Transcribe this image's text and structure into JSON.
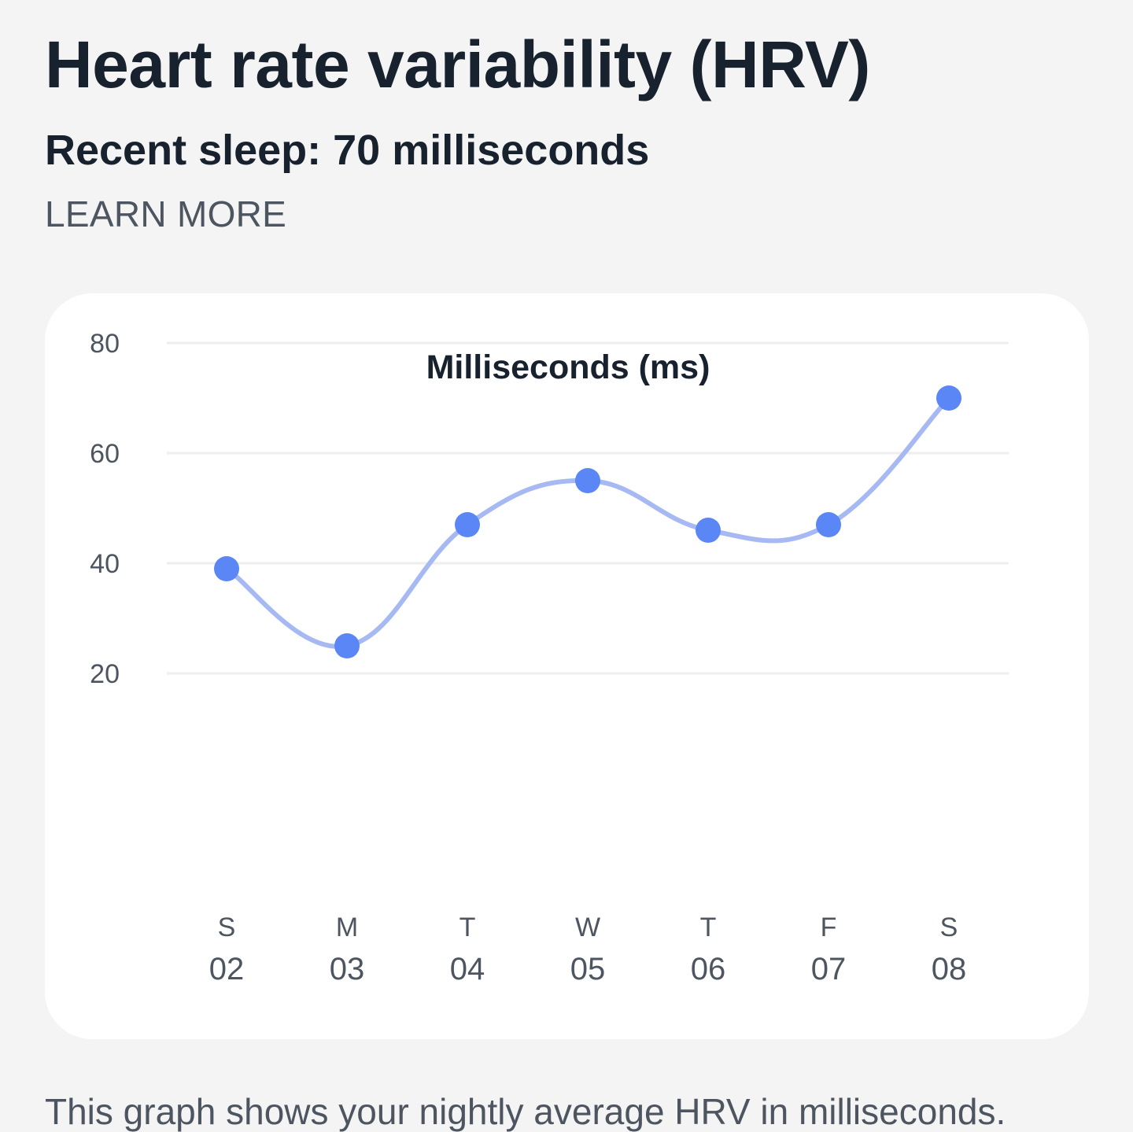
{
  "header": {
    "title": "Heart rate variability (HRV)",
    "recent_sleep": "Recent sleep: 70 milliseconds",
    "learn_more": "LEARN MORE"
  },
  "description": "This graph shows your nightly average HRV in milliseconds.",
  "colors": {
    "line": "#a6b9f3",
    "point": "#5b86f5",
    "grid": "#eeeeee",
    "text_dark": "#17222e",
    "text_muted": "#4d5560"
  },
  "chart_data": {
    "type": "line",
    "title": "Milliseconds (ms)",
    "xlabel": "",
    "ylabel": "",
    "ylim": [
      0,
      80
    ],
    "y_ticks": [
      20,
      40,
      60,
      80
    ],
    "grid": true,
    "categories": [
      {
        "day": "S",
        "date": "02"
      },
      {
        "day": "M",
        "date": "03"
      },
      {
        "day": "T",
        "date": "04"
      },
      {
        "day": "W",
        "date": "05"
      },
      {
        "day": "T",
        "date": "06"
      },
      {
        "day": "F",
        "date": "07"
      },
      {
        "day": "S",
        "date": "08"
      }
    ],
    "series": [
      {
        "values": [
          39,
          25,
          47,
          55,
          46,
          47,
          70
        ]
      }
    ]
  }
}
